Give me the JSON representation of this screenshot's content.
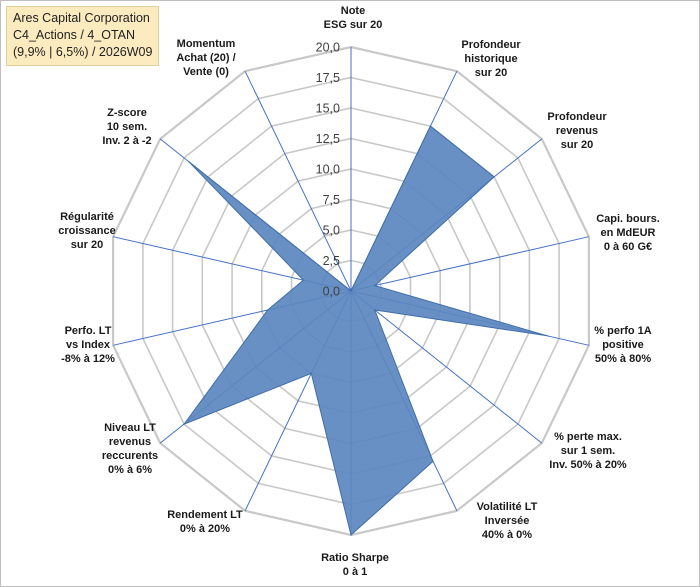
{
  "title_box": {
    "line1": "Ares Capital Corporation",
    "line2": "C4_Actions / 4_OTAN",
    "line3": "(9,9% | 6,5%) / 2026W09"
  },
  "chart_data": {
    "type": "radar",
    "rlim": [
      0,
      20
    ],
    "rticks": [
      "0,0",
      "2,5",
      "5,0",
      "7,5",
      "10,0",
      "12,5",
      "15,0",
      "17,5",
      "20,0"
    ],
    "grid": true,
    "axes": [
      [
        "Note",
        "ESG sur 20"
      ],
      [
        "Profondeur",
        "historique",
        "sur 20"
      ],
      [
        "Profondeur",
        "revenus",
        "sur 20"
      ],
      [
        "Capi. bours.",
        "en MdEUR",
        "0 à 60 G€"
      ],
      [
        "% perfo 1A",
        "positive",
        "50% à 80%"
      ],
      [
        "% perte max.",
        "sur 1 sem.",
        "Inv. 50% à 20%"
      ],
      [
        "Volatilité LT",
        "Inversée",
        "40% à 0%"
      ],
      [
        "Ratio Sharpe",
        "0 à 1"
      ],
      [
        "Rendement LT",
        "0% à 20%"
      ],
      [
        "Niveau LT",
        "revenus",
        "reccurents",
        "0% à 6%"
      ],
      [
        "Perfo. LT",
        "vs Index",
        "-8% à 12%"
      ],
      [
        "Régularité",
        "croissance",
        "sur 20"
      ],
      [
        "Z-score",
        "10 sem.",
        "Inv. 2 à -2"
      ],
      [
        "Momentum",
        "Achat (20) /",
        "Vente (0)"
      ]
    ],
    "values": [
      0,
      15.0,
      15.0,
      2.0,
      16.5,
      2.5,
      15.5,
      20.0,
      7.5,
      17.5,
      7.0,
      4.0,
      17.0,
      0
    ],
    "colors": {
      "fill": "#5b87bf",
      "stroke": "#3f6ea8",
      "grid": "#c8c8c8",
      "axis": "#4472c4"
    }
  }
}
